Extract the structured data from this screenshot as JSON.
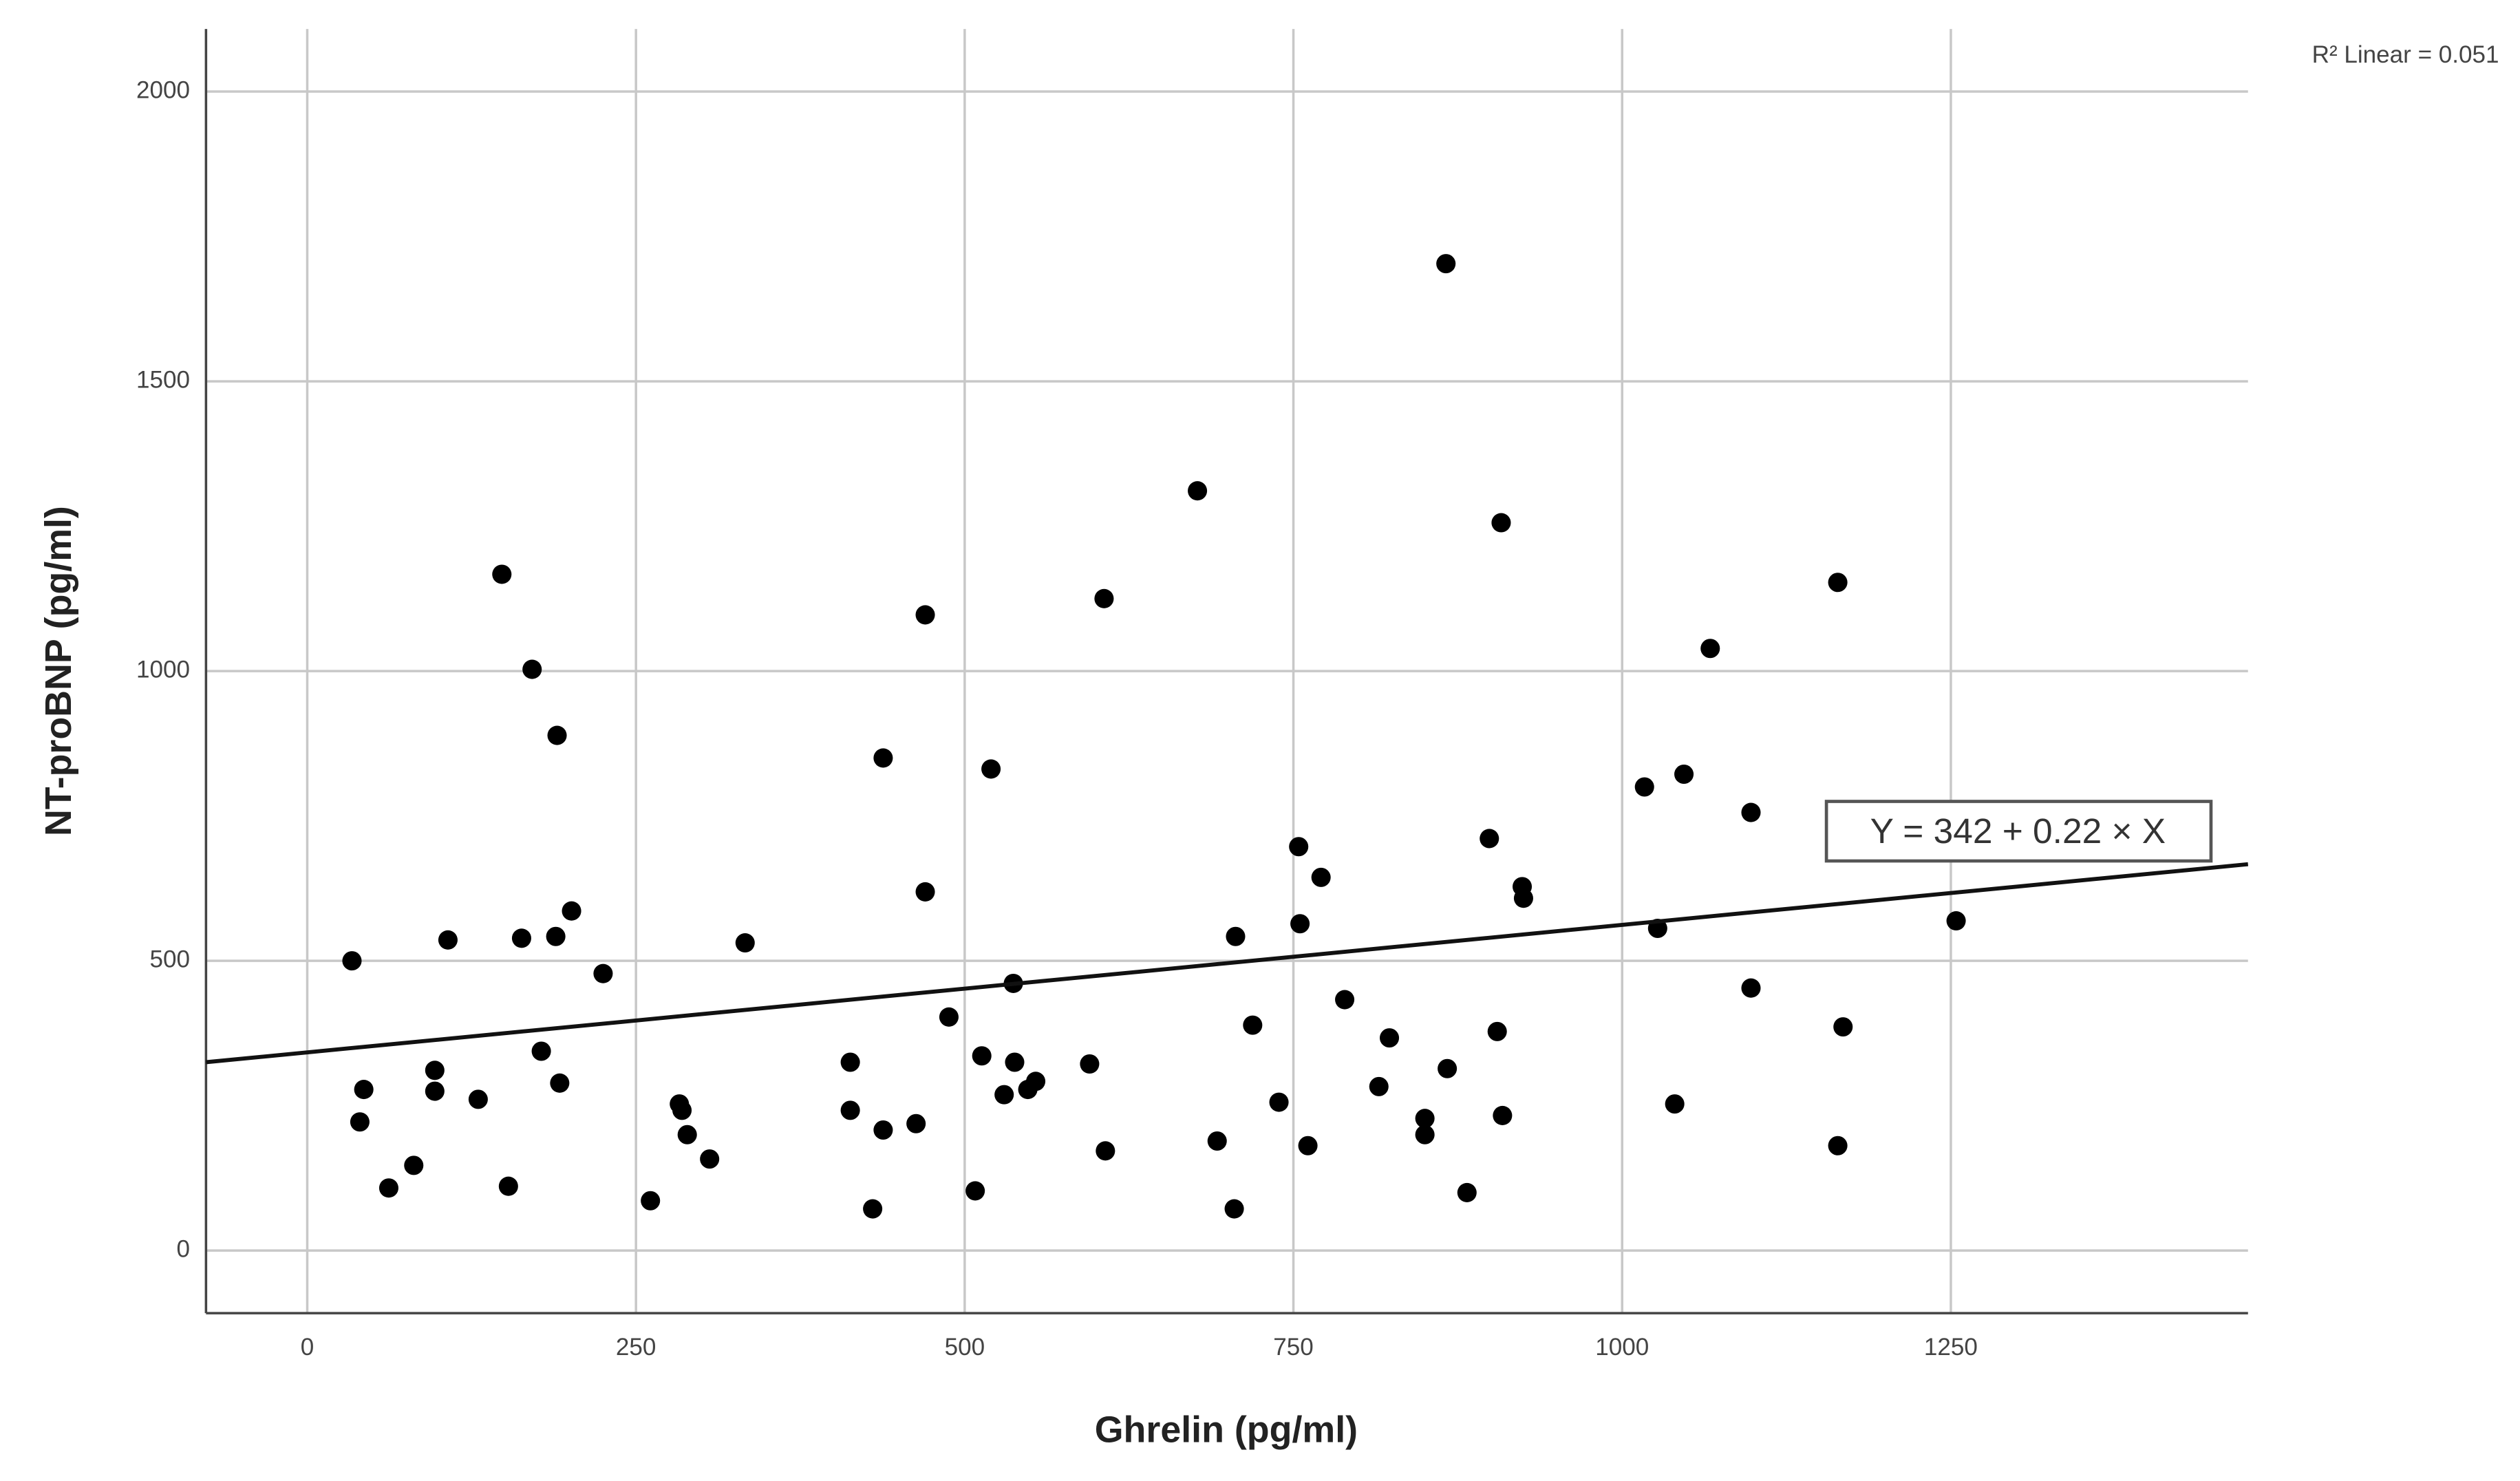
{
  "chart_data": {
    "type": "scatter",
    "x_label": "Ghrelin (pg/ml)",
    "y_label": "NT-proBNP (pg/ml)",
    "xlim": [
      -77,
      1476
    ],
    "ylim": [
      -108,
      2108
    ],
    "xticks": [
      0,
      250,
      500,
      750,
      1000,
      1250
    ],
    "yticks": [
      0,
      500,
      1000,
      1500,
      2000
    ],
    "grid": true,
    "color": "#000000",
    "fit": {
      "intercept": 342,
      "slope": 0.22,
      "label": "Y = 342 + 0.22 × X"
    },
    "r2": {
      "value": 0.051,
      "label": "R² Linear = 0.051"
    },
    "x": [
      34,
      43,
      40,
      62,
      81,
      97,
      97,
      107,
      130,
      148,
      153,
      163,
      171,
      178,
      189,
      190,
      192,
      201,
      225,
      261,
      283,
      285,
      289,
      306,
      333,
      413,
      413,
      430,
      438,
      438,
      463,
      470,
      470,
      488,
      508,
      513,
      520,
      530,
      537,
      538,
      548,
      554,
      595,
      606,
      607,
      677,
      692,
      705,
      706,
      719,
      739,
      754,
      755,
      761,
      771,
      789,
      815,
      823,
      850,
      850,
      866,
      867,
      882,
      899,
      905,
      908,
      909,
      924,
      925,
      1017,
      1027,
      1040,
      1047,
      1067,
      1098,
      1098,
      1164,
      1164,
      1168,
      1254
    ],
    "values": [
      500,
      278,
      222,
      108,
      147,
      311,
      275,
      536,
      261,
      1167,
      111,
      539,
      1003,
      344,
      542,
      889,
      289,
      586,
      478,
      86,
      253,
      242,
      200,
      158,
      531,
      325,
      242,
      72,
      208,
      850,
      219,
      1097,
      619,
      403,
      103,
      336,
      831,
      269,
      461,
      325,
      278,
      292,
      322,
      1125,
      172,
      1311,
      189,
      72,
      542,
      389,
      256,
      697,
      564,
      181,
      644,
      433,
      283,
      367,
      228,
      200,
      1703,
      314,
      100,
      711,
      378,
      1256,
      233,
      628,
      608,
      800,
      556,
      253,
      822,
      1039,
      756,
      453,
      1153,
      181,
      386,
      569
    ]
  }
}
